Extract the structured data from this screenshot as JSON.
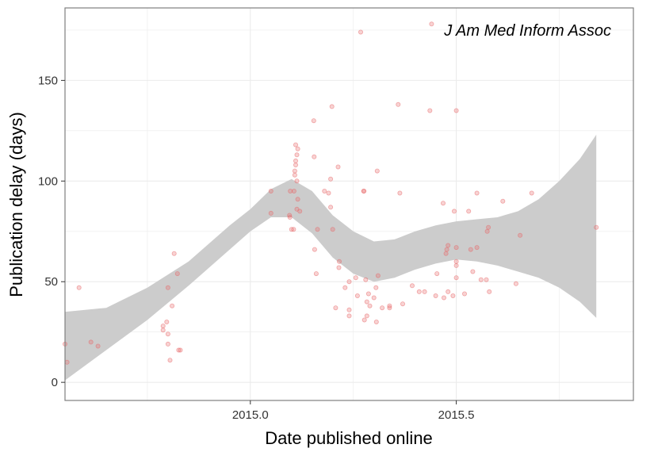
{
  "chart_data": {
    "type": "scatter",
    "title": "",
    "xlabel": "Date published online",
    "ylabel": "Publication delay (days)",
    "annotation": "J Am Med Inform Assoc",
    "xlim": [
      2014.55,
      2015.93
    ],
    "ylim": [
      -9,
      186
    ],
    "x_ticks": [
      {
        "value": 2015.0,
        "label": "2015.0"
      },
      {
        "value": 2015.5,
        "label": "2015.5"
      }
    ],
    "x_minor_ticks": [
      2014.75,
      2015.25,
      2015.75
    ],
    "y_ticks": [
      {
        "value": 0,
        "label": "0"
      },
      {
        "value": 50,
        "label": "50"
      },
      {
        "value": 100,
        "label": "100"
      },
      {
        "value": 150,
        "label": "150"
      }
    ],
    "y_minor_ticks": [
      25,
      75,
      125,
      175
    ],
    "grid": true,
    "colors": {
      "points": "#e8696b",
      "ribbon": "#cccccc",
      "grid": "#ebebeb",
      "border": "#7f7f7f"
    },
    "points": [
      [
        2014.55,
        19
      ],
      [
        2014.555,
        10
      ],
      [
        2014.584,
        47
      ],
      [
        2014.613,
        20
      ],
      [
        2014.63,
        18
      ],
      [
        2014.788,
        26
      ],
      [
        2014.788,
        28
      ],
      [
        2014.797,
        30
      ],
      [
        2014.8,
        24
      ],
      [
        2014.8,
        47
      ],
      [
        2014.8,
        19
      ],
      [
        2014.805,
        11
      ],
      [
        2014.81,
        38
      ],
      [
        2014.815,
        64
      ],
      [
        2014.823,
        54
      ],
      [
        2014.826,
        16
      ],
      [
        2014.83,
        16
      ],
      [
        2015.05,
        95
      ],
      [
        2015.05,
        84
      ],
      [
        2015.095,
        83
      ],
      [
        2015.096,
        82
      ],
      [
        2015.097,
        95
      ],
      [
        2015.1,
        76
      ],
      [
        2015.105,
        76
      ],
      [
        2015.106,
        95
      ],
      [
        2015.108,
        103
      ],
      [
        2015.108,
        105
      ],
      [
        2015.11,
        108
      ],
      [
        2015.11,
        110
      ],
      [
        2015.11,
        118
      ],
      [
        2015.113,
        113
      ],
      [
        2015.113,
        100
      ],
      [
        2015.113,
        86
      ],
      [
        2015.115,
        116
      ],
      [
        2015.115,
        91
      ],
      [
        2015.12,
        85
      ],
      [
        2015.154,
        130
      ],
      [
        2015.155,
        112
      ],
      [
        2015.156,
        66
      ],
      [
        2015.16,
        54
      ],
      [
        2015.163,
        76
      ],
      [
        2015.18,
        95
      ],
      [
        2015.19,
        94
      ],
      [
        2015.195,
        87
      ],
      [
        2015.195,
        101
      ],
      [
        2015.198,
        137
      ],
      [
        2015.2,
        76
      ],
      [
        2015.207,
        37
      ],
      [
        2015.213,
        107
      ],
      [
        2015.215,
        57
      ],
      [
        2015.216,
        60
      ],
      [
        2015.23,
        47
      ],
      [
        2015.24,
        50
      ],
      [
        2015.24,
        33
      ],
      [
        2015.24,
        36
      ],
      [
        2015.256,
        52
      ],
      [
        2015.26,
        43
      ],
      [
        2015.268,
        174
      ],
      [
        2015.275,
        95
      ],
      [
        2015.276,
        95
      ],
      [
        2015.277,
        31
      ],
      [
        2015.28,
        51
      ],
      [
        2015.283,
        40
      ],
      [
        2015.283,
        33
      ],
      [
        2015.287,
        44
      ],
      [
        2015.29,
        38
      ],
      [
        2015.3,
        42
      ],
      [
        2015.305,
        47
      ],
      [
        2015.306,
        30
      ],
      [
        2015.308,
        105
      ],
      [
        2015.31,
        53
      ],
      [
        2015.32,
        37
      ],
      [
        2015.338,
        37
      ],
      [
        2015.338,
        38
      ],
      [
        2015.359,
        138
      ],
      [
        2015.363,
        94
      ],
      [
        2015.37,
        39
      ],
      [
        2015.393,
        48
      ],
      [
        2015.41,
        45
      ],
      [
        2015.423,
        45
      ],
      [
        2015.436,
        135
      ],
      [
        2015.44,
        178
      ],
      [
        2015.45,
        43
      ],
      [
        2015.453,
        54
      ],
      [
        2015.468,
        89
      ],
      [
        2015.47,
        42
      ],
      [
        2015.475,
        64
      ],
      [
        2015.477,
        66
      ],
      [
        2015.48,
        68
      ],
      [
        2015.48,
        45
      ],
      [
        2015.492,
        43
      ],
      [
        2015.495,
        85
      ],
      [
        2015.5,
        58
      ],
      [
        2015.5,
        52
      ],
      [
        2015.5,
        67
      ],
      [
        2015.5,
        60
      ],
      [
        2015.5,
        135
      ],
      [
        2015.52,
        44
      ],
      [
        2015.53,
        85
      ],
      [
        2015.535,
        66
      ],
      [
        2015.54,
        55
      ],
      [
        2015.55,
        67
      ],
      [
        2015.55,
        94
      ],
      [
        2015.56,
        51
      ],
      [
        2015.573,
        51
      ],
      [
        2015.575,
        75
      ],
      [
        2015.578,
        77
      ],
      [
        2015.58,
        45
      ],
      [
        2015.613,
        90
      ],
      [
        2015.645,
        49
      ],
      [
        2015.655,
        73
      ],
      [
        2015.683,
        94
      ],
      [
        2015.84,
        77
      ]
    ],
    "smooth": {
      "x": [
        2014.55,
        2014.65,
        2014.75,
        2014.85,
        2014.95,
        2015.0,
        2015.05,
        2015.1,
        2015.15,
        2015.2,
        2015.25,
        2015.3,
        2015.35,
        2015.4,
        2015.45,
        2015.5,
        2015.55,
        2015.6,
        2015.65,
        2015.7,
        2015.75,
        2015.8,
        2015.84
      ],
      "lower": [
        1,
        16,
        31,
        48,
        66,
        75,
        82,
        82,
        74,
        62,
        54,
        50,
        52,
        56,
        59,
        61,
        60,
        58,
        55,
        52,
        47,
        40,
        32
      ],
      "upper": [
        35,
        37,
        47,
        60,
        78,
        86,
        96,
        101,
        95,
        83,
        75,
        70,
        71,
        75,
        78,
        80,
        81,
        82,
        85,
        91,
        100,
        111,
        123
      ]
    }
  }
}
